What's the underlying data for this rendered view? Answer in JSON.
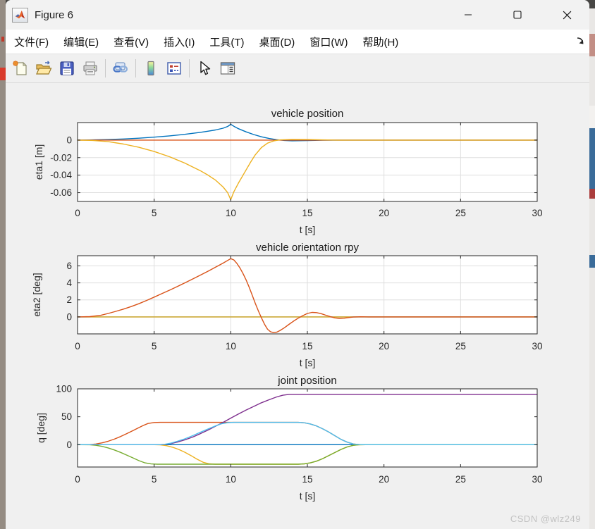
{
  "window": {
    "title": "Figure 6"
  },
  "menu": {
    "items": [
      "文件(F)",
      "编辑(E)",
      "查看(V)",
      "插入(I)",
      "工具(T)",
      "桌面(D)",
      "窗口(W)",
      "帮助(H)"
    ]
  },
  "toolbar": {
    "icons": [
      "new-figure",
      "open-file",
      "save-figure",
      "print-figure",
      "link-plot",
      "insert-colorbar",
      "insert-legend",
      "edit-plot-cursor",
      "property-inspector"
    ]
  },
  "watermark": "CSDN @wlz249",
  "palette": {
    "blue": "#0072BD",
    "orange": "#D95319",
    "yellow": "#EDB120",
    "purple": "#7E2F8E",
    "green": "#77AC30",
    "cyan": "#4DBEEE",
    "axis": "#262626",
    "grid": "#dedede",
    "canvas": "#f0f0f0"
  },
  "chart_data": [
    {
      "type": "line",
      "title": "vehicle position",
      "xlabel": "t [s]",
      "ylabel": "eta1 [m]",
      "xlim": [
        0,
        30
      ],
      "ylim": [
        -0.07,
        0.02
      ],
      "xticks": [
        0,
        5,
        10,
        15,
        20,
        25,
        30
      ],
      "yticks": [
        0,
        -0.02,
        -0.04,
        -0.06
      ],
      "ytick_labels": [
        "0",
        "-0.02",
        "-0.04",
        "-0.06"
      ],
      "grid": true,
      "series": [
        {
          "name": "blue",
          "color": "#0072BD",
          "points": [
            [
              0,
              0
            ],
            [
              1,
              0.0002
            ],
            [
              2,
              0.0006
            ],
            [
              3,
              0.0013
            ],
            [
              4,
              0.0022
            ],
            [
              5,
              0.0034
            ],
            [
              6,
              0.0048
            ],
            [
              7,
              0.0066
            ],
            [
              8,
              0.0088
            ],
            [
              8.5,
              0.0101
            ],
            [
              9,
              0.0116
            ],
            [
              9.5,
              0.0136
            ],
            [
              9.8,
              0.0156
            ],
            [
              10,
              0.018
            ],
            [
              10.2,
              0.0158
            ],
            [
              10.5,
              0.013
            ],
            [
              11,
              0.0094
            ],
            [
              11.5,
              0.0063
            ],
            [
              12,
              0.0038
            ],
            [
              12.5,
              0.0018
            ],
            [
              13,
              0.0005
            ],
            [
              13.5,
              -0.0004
            ],
            [
              14,
              -0.0008
            ],
            [
              15,
              -0.0006
            ],
            [
              16,
              -0.0002
            ],
            [
              17,
              0
            ],
            [
              30,
              0
            ]
          ]
        },
        {
          "name": "orange-red",
          "color": "#D95319",
          "points": [
            [
              0,
              0
            ],
            [
              30,
              0
            ]
          ]
        },
        {
          "name": "yellow",
          "color": "#EDB120",
          "points": [
            [
              0,
              0
            ],
            [
              1,
              -0.0004
            ],
            [
              2,
              -0.0018
            ],
            [
              3,
              -0.0045
            ],
            [
              4,
              -0.0082
            ],
            [
              5,
              -0.013
            ],
            [
              6,
              -0.019
            ],
            [
              7,
              -0.0262
            ],
            [
              8,
              -0.0348
            ],
            [
              8.5,
              -0.0398
            ],
            [
              9,
              -0.0456
            ],
            [
              9.5,
              -0.0535
            ],
            [
              9.8,
              -0.06
            ],
            [
              10,
              -0.068
            ],
            [
              10.2,
              -0.059
            ],
            [
              10.5,
              -0.049
            ],
            [
              11,
              -0.034
            ],
            [
              11.3,
              -0.025
            ],
            [
              11.6,
              -0.0168
            ],
            [
              12,
              -0.0085
            ],
            [
              12.4,
              -0.0035
            ],
            [
              12.8,
              -0.001
            ],
            [
              13.2,
              0.0002
            ],
            [
              14,
              0.0008
            ],
            [
              15,
              0.0006
            ],
            [
              16,
              0.0002
            ],
            [
              17,
              0
            ],
            [
              30,
              0
            ]
          ]
        }
      ]
    },
    {
      "type": "line",
      "title": "vehicle orientation rpy",
      "xlabel": "t [s]",
      "ylabel": "eta2 [deg]",
      "xlim": [
        0,
        30
      ],
      "ylim": [
        -2,
        7.2
      ],
      "xticks": [
        0,
        5,
        10,
        15,
        20,
        25,
        30
      ],
      "yticks": [
        6,
        4,
        2,
        0
      ],
      "ytick_labels": [
        "6",
        "4",
        "2",
        "0"
      ],
      "grid": true,
      "series": [
        {
          "name": "blue",
          "color": "#0072BD",
          "points": [
            [
              0,
              0
            ],
            [
              30,
              0
            ]
          ]
        },
        {
          "name": "yellow",
          "color": "#EDB120",
          "points": [
            [
              0,
              0
            ],
            [
              30,
              0
            ]
          ]
        },
        {
          "name": "orange-red",
          "color": "#D95319",
          "points": [
            [
              0,
              0
            ],
            [
              0.8,
              0.03
            ],
            [
              1.5,
              0.18
            ],
            [
              2,
              0.4
            ],
            [
              2.5,
              0.65
            ],
            [
              3,
              0.92
            ],
            [
              3.5,
              1.22
            ],
            [
              4,
              1.55
            ],
            [
              4.5,
              1.93
            ],
            [
              5,
              2.33
            ],
            [
              5.5,
              2.73
            ],
            [
              6,
              3.14
            ],
            [
              6.5,
              3.56
            ],
            [
              7,
              4.0
            ],
            [
              7.5,
              4.44
            ],
            [
              8,
              4.9
            ],
            [
              8.5,
              5.36
            ],
            [
              9,
              5.84
            ],
            [
              9.5,
              6.33
            ],
            [
              10,
              6.85
            ],
            [
              10.2,
              6.7
            ],
            [
              10.4,
              6.3
            ],
            [
              10.6,
              5.75
            ],
            [
              10.8,
              5.1
            ],
            [
              11,
              4.35
            ],
            [
              11.2,
              3.5
            ],
            [
              11.4,
              2.55
            ],
            [
              11.6,
              1.6
            ],
            [
              11.8,
              0.7
            ],
            [
              12,
              -0.1
            ],
            [
              12.2,
              -0.85
            ],
            [
              12.4,
              -1.45
            ],
            [
              12.6,
              -1.75
            ],
            [
              12.8,
              -1.85
            ],
            [
              13,
              -1.8
            ],
            [
              13.2,
              -1.62
            ],
            [
              13.5,
              -1.28
            ],
            [
              13.8,
              -0.88
            ],
            [
              14.1,
              -0.5
            ],
            [
              14.4,
              -0.15
            ],
            [
              14.7,
              0.15
            ],
            [
              15,
              0.4
            ],
            [
              15.3,
              0.53
            ],
            [
              15.6,
              0.5
            ],
            [
              15.9,
              0.38
            ],
            [
              16.2,
              0.2
            ],
            [
              16.5,
              0.02
            ],
            [
              16.8,
              -0.12
            ],
            [
              17.1,
              -0.18
            ],
            [
              17.4,
              -0.15
            ],
            [
              17.7,
              -0.08
            ],
            [
              18,
              -0.02
            ],
            [
              18.5,
              0.01
            ],
            [
              19,
              0
            ],
            [
              30,
              0
            ]
          ]
        }
      ]
    },
    {
      "type": "line",
      "title": "joint position",
      "xlabel": "t [s]",
      "ylabel": "q [deg]",
      "xlim": [
        0,
        30
      ],
      "ylim": [
        -40,
        100
      ],
      "xticks": [
        0,
        5,
        10,
        15,
        20,
        25,
        30
      ],
      "yticks": [
        100,
        50,
        0
      ],
      "ytick_labels": [
        "100",
        "50",
        "0"
      ],
      "grid": false,
      "series": [
        {
          "name": "blue",
          "color": "#0072BD",
          "points": [
            [
              0,
              0
            ],
            [
              30,
              0
            ]
          ]
        },
        {
          "name": "orange-red",
          "color": "#D95319",
          "points": [
            [
              0,
              0
            ],
            [
              0.8,
              0.1
            ],
            [
              1.2,
              1.2
            ],
            [
              1.6,
              3.2
            ],
            [
              2,
              6.2
            ],
            [
              2.4,
              10
            ],
            [
              2.8,
              14.5
            ],
            [
              3.2,
              19.5
            ],
            [
              3.6,
              25
            ],
            [
              4,
              30.5
            ],
            [
              4.3,
              34.5
            ],
            [
              4.6,
              38
            ],
            [
              5,
              39.7
            ],
            [
              5.4,
              40
            ],
            [
              14.4,
              40
            ],
            [
              14.8,
              39.2
            ],
            [
              15.2,
              37
            ],
            [
              15.6,
              33.5
            ],
            [
              16,
              28.5
            ],
            [
              16.4,
              22.5
            ],
            [
              16.8,
              16
            ],
            [
              17.2,
              9.5
            ],
            [
              17.6,
              4.5
            ],
            [
              18,
              1.3
            ],
            [
              18.4,
              0.2
            ],
            [
              18.8,
              0
            ],
            [
              30,
              0
            ]
          ]
        },
        {
          "name": "yellow",
          "color": "#EDB120",
          "points": [
            [
              0,
              0
            ],
            [
              5,
              0
            ],
            [
              5.4,
              -0.4
            ],
            [
              5.8,
              -1.8
            ],
            [
              6.2,
              -4.5
            ],
            [
              6.6,
              -8.5
            ],
            [
              7,
              -13.5
            ],
            [
              7.4,
              -19.5
            ],
            [
              7.8,
              -26
            ],
            [
              8.2,
              -31.5
            ],
            [
              8.6,
              -34.3
            ],
            [
              9,
              -35
            ],
            [
              14.4,
              -35
            ],
            [
              14.8,
              -34.3
            ],
            [
              15.2,
              -32.5
            ],
            [
              15.6,
              -29.5
            ],
            [
              16,
              -25
            ],
            [
              16.4,
              -19.5
            ],
            [
              16.8,
              -14
            ],
            [
              17.2,
              -8.5
            ],
            [
              17.6,
              -4
            ],
            [
              18,
              -1.2
            ],
            [
              18.4,
              -0.2
            ],
            [
              18.8,
              0
            ],
            [
              30,
              0
            ]
          ]
        },
        {
          "name": "purple",
          "color": "#7E2F8E",
          "points": [
            [
              0,
              0
            ],
            [
              5.3,
              0
            ],
            [
              5.7,
              0.5
            ],
            [
              6.1,
              2
            ],
            [
              6.5,
              4.5
            ],
            [
              7,
              8.5
            ],
            [
              7.5,
              13.5
            ],
            [
              8,
              19.5
            ],
            [
              8.5,
              26
            ],
            [
              9,
              33
            ],
            [
              9.5,
              40
            ],
            [
              10,
              47.5
            ],
            [
              10.5,
              55
            ],
            [
              11,
              62
            ],
            [
              11.5,
              68.5
            ],
            [
              12,
              75
            ],
            [
              12.5,
              80.5
            ],
            [
              13,
              85.5
            ],
            [
              13.4,
              88.5
            ],
            [
              13.8,
              90
            ],
            [
              30,
              90
            ]
          ]
        },
        {
          "name": "green",
          "color": "#77AC30",
          "points": [
            [
              0,
              0
            ],
            [
              0.8,
              -0.1
            ],
            [
              1.2,
              -1.2
            ],
            [
              1.6,
              -3
            ],
            [
              2,
              -5.8
            ],
            [
              2.4,
              -9.5
            ],
            [
              2.8,
              -13.8
            ],
            [
              3.2,
              -18.5
            ],
            [
              3.6,
              -23.5
            ],
            [
              4,
              -28.5
            ],
            [
              4.4,
              -32.5
            ],
            [
              4.8,
              -34.5
            ],
            [
              5.2,
              -35
            ],
            [
              14.4,
              -35
            ],
            [
              14.8,
              -34.3
            ],
            [
              15.2,
              -32.5
            ],
            [
              15.6,
              -29.5
            ],
            [
              16,
              -25
            ],
            [
              16.4,
              -19.5
            ],
            [
              16.8,
              -14
            ],
            [
              17.2,
              -8.5
            ],
            [
              17.6,
              -4
            ],
            [
              18,
              -1.2
            ],
            [
              18.4,
              -0.2
            ],
            [
              18.8,
              0
            ],
            [
              30,
              0
            ]
          ]
        },
        {
          "name": "cyan",
          "color": "#4DBEEE",
          "points": [
            [
              0,
              0
            ],
            [
              5.3,
              0
            ],
            [
              5.7,
              0.8
            ],
            [
              6.1,
              2.8
            ],
            [
              6.5,
              6
            ],
            [
              7,
              10.5
            ],
            [
              7.5,
              16
            ],
            [
              8,
              22
            ],
            [
              8.5,
              28
            ],
            [
              9,
              33.5
            ],
            [
              9.4,
              37.5
            ],
            [
              9.8,
              39.5
            ],
            [
              10.2,
              40
            ],
            [
              14.4,
              40
            ],
            [
              14.8,
              39.2
            ],
            [
              15.2,
              37
            ],
            [
              15.6,
              33.5
            ],
            [
              16,
              28.5
            ],
            [
              16.4,
              22.5
            ],
            [
              16.8,
              16
            ],
            [
              17.2,
              9.5
            ],
            [
              17.6,
              4.5
            ],
            [
              18,
              1.3
            ],
            [
              18.4,
              0.2
            ],
            [
              18.8,
              0
            ],
            [
              30,
              0
            ]
          ]
        }
      ]
    }
  ]
}
